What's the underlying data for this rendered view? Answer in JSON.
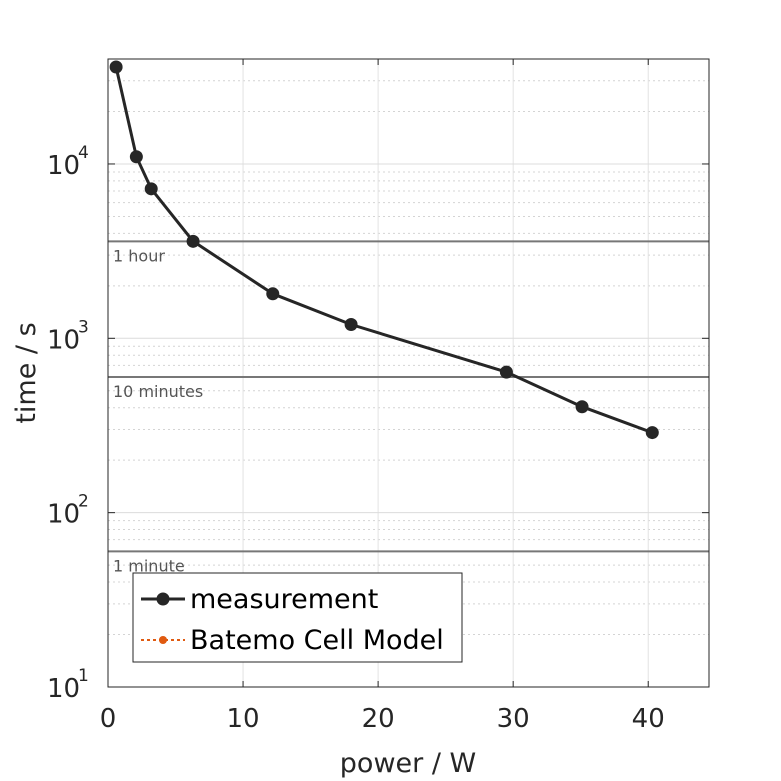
{
  "chart_data": {
    "type": "line",
    "xlabel": "power / W",
    "ylabel": "time / s",
    "xlim": [
      0,
      44.5
    ],
    "ylim": [
      10,
      40000
    ],
    "yscale": "log",
    "grid": true,
    "minor_grid": true,
    "x_ticks": [
      {
        "value": 0,
        "label": "0"
      },
      {
        "value": 10,
        "label": "10"
      },
      {
        "value": 20,
        "label": "20"
      },
      {
        "value": 30,
        "label": "30"
      },
      {
        "value": 40,
        "label": "40"
      }
    ],
    "y_ticks": [
      {
        "value": 10,
        "base": "10",
        "exp": "1"
      },
      {
        "value": 100,
        "base": "10",
        "exp": "2"
      },
      {
        "value": 1000,
        "base": "10",
        "exp": "3"
      },
      {
        "value": 10000,
        "base": "10",
        "exp": "4"
      }
    ],
    "series": [
      {
        "name": "measurement",
        "color": "#262626",
        "marker": "circle",
        "x": [
          0.6,
          2.1,
          3.2,
          6.3,
          12.2,
          18.0,
          29.5,
          35.1,
          40.3
        ],
        "y": [
          36000,
          11000,
          7200,
          3600,
          1800,
          1200,
          640,
          405,
          288
        ]
      },
      {
        "name": "Batemo Cell Model",
        "color": "#e05a10",
        "marker": "circle",
        "line_style": "dotted",
        "x": [],
        "y": []
      }
    ],
    "reference_lines": [
      {
        "value": 3600,
        "label": "1 hour"
      },
      {
        "value": 600,
        "label": "10 minutes"
      },
      {
        "value": 60,
        "label": "1 minute"
      }
    ],
    "legend_position": "bottom-left"
  }
}
